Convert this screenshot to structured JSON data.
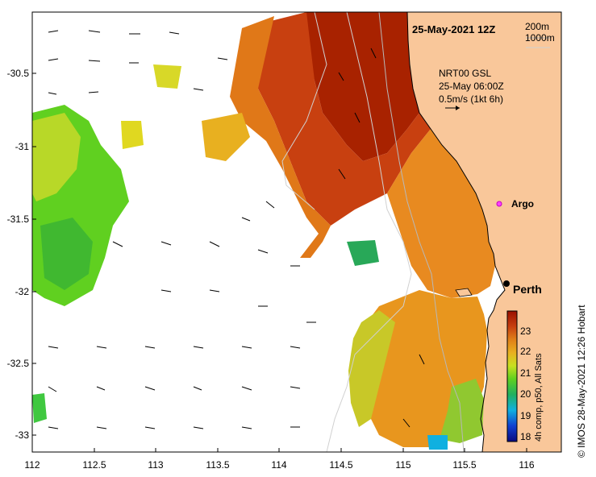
{
  "title": "25-May-2021 12Z",
  "legend_isobaths": [
    "200m",
    "1000m"
  ],
  "current_info": [
    "NRT00 GSL",
    "25-May 06:00Z",
    "0.5m/s (1kt 6h)"
  ],
  "places": {
    "argo": "Argo",
    "city": "Perth"
  },
  "colorbar": {
    "label": "4h comp, p50, All Sats",
    "unit_ticks": [
      "23",
      "22",
      "21",
      "20",
      "19",
      "18"
    ]
  },
  "credit": "© IMOS 28-May-2021 12:26 Hobart",
  "axes": {
    "x_ticks": [
      "112",
      "112.5",
      "113",
      "113.5",
      "114",
      "114.5",
      "115",
      "115.5",
      "116"
    ],
    "y_ticks": [
      "-30.5",
      "-31",
      "-31.5",
      "-32",
      "-32.5",
      "-33"
    ]
  },
  "colors": {
    "land": "#f9c79a",
    "coast": "#000000",
    "isobath_200": "#b8b8b8",
    "isobath_1000": "#d0d0d0"
  }
}
